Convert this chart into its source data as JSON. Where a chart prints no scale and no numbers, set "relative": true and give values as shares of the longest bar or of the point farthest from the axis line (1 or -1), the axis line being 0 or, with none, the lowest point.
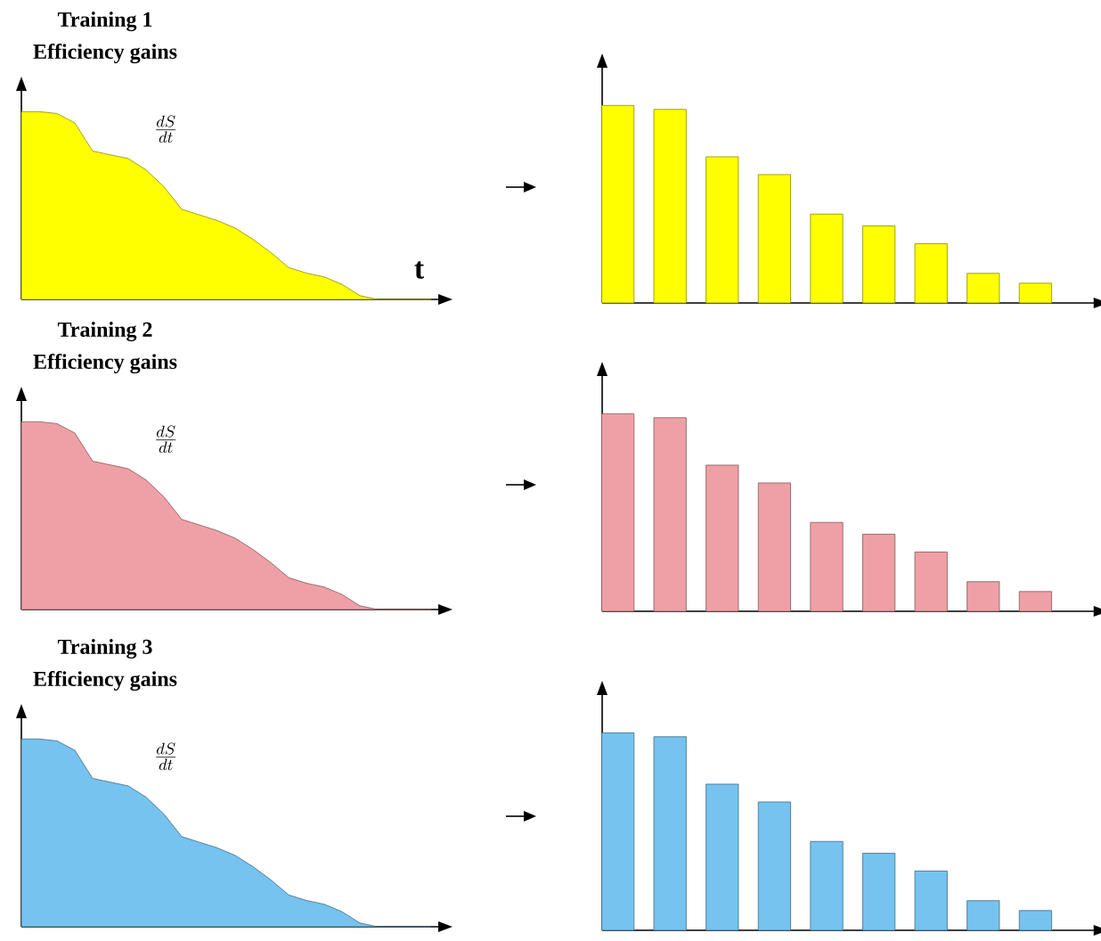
{
  "chart_data": [
    {
      "type": "area",
      "title": "Training 1",
      "subtitle": "Efficiency gains",
      "xlabel": "t",
      "annotations": [
        "\\frac{dS}{dt}"
      ],
      "relative": true,
      "color": "#ffff00",
      "categories": [
        null,
        null,
        null,
        null,
        null,
        null,
        null,
        null,
        null,
        null,
        null,
        null,
        null,
        null,
        null,
        null,
        null,
        null,
        null,
        null,
        null,
        null,
        null,
        null
      ],
      "values": [
        1,
        1,
        0.99,
        0.94,
        0.79,
        0.77,
        0.75,
        0.69,
        0.6,
        0.48,
        0.45,
        0.42,
        0.38,
        0.32,
        0.25,
        0.17,
        0.14,
        0.12,
        0.08,
        0.02,
        0,
        0,
        0,
        0
      ]
    },
    {
      "type": "bar",
      "relative": true,
      "color": "#ffff00",
      "categories": [
        null,
        null,
        null,
        null,
        null,
        null,
        null,
        null,
        null
      ],
      "values": [
        1,
        0.98,
        0.74,
        0.65,
        0.45,
        0.39,
        0.3,
        0.15,
        0.1
      ]
    },
    {
      "type": "area",
      "title": "Training 2",
      "subtitle": "Efficiency gains",
      "annotations": [
        "\\frac{dS}{dt}"
      ],
      "relative": true,
      "color": "#eea0a6",
      "categories": [
        null,
        null,
        null,
        null,
        null,
        null,
        null,
        null,
        null,
        null,
        null,
        null,
        null,
        null,
        null,
        null,
        null,
        null,
        null,
        null,
        null,
        null,
        null,
        null
      ],
      "values": [
        1,
        1,
        0.99,
        0.94,
        0.79,
        0.77,
        0.75,
        0.69,
        0.6,
        0.48,
        0.45,
        0.42,
        0.38,
        0.32,
        0.25,
        0.17,
        0.14,
        0.12,
        0.08,
        0.02,
        0,
        0,
        0,
        0
      ]
    },
    {
      "type": "bar",
      "relative": true,
      "color": "#eea0a6",
      "categories": [
        null,
        null,
        null,
        null,
        null,
        null,
        null,
        null,
        null
      ],
      "values": [
        1,
        0.98,
        0.74,
        0.65,
        0.45,
        0.39,
        0.3,
        0.15,
        0.1
      ]
    },
    {
      "type": "area",
      "title": "Training 3",
      "subtitle": "Efficiency gains",
      "annotations": [
        "\\frac{dS}{dt}"
      ],
      "relative": true,
      "color": "#75c3ee",
      "categories": [
        null,
        null,
        null,
        null,
        null,
        null,
        null,
        null,
        null,
        null,
        null,
        null,
        null,
        null,
        null,
        null,
        null,
        null,
        null,
        null,
        null,
        null,
        null,
        null
      ],
      "values": [
        1,
        1,
        0.99,
        0.94,
        0.79,
        0.77,
        0.75,
        0.69,
        0.6,
        0.48,
        0.45,
        0.42,
        0.38,
        0.32,
        0.25,
        0.17,
        0.14,
        0.12,
        0.08,
        0.02,
        0,
        0,
        0,
        0
      ]
    },
    {
      "type": "bar",
      "relative": true,
      "color": "#75c3ee",
      "categories": [
        null,
        null,
        null,
        null,
        null,
        null,
        null,
        null,
        null
      ],
      "values": [
        1,
        0.98,
        0.74,
        0.65,
        0.45,
        0.39,
        0.3,
        0.15,
        0.1
      ]
    }
  ]
}
